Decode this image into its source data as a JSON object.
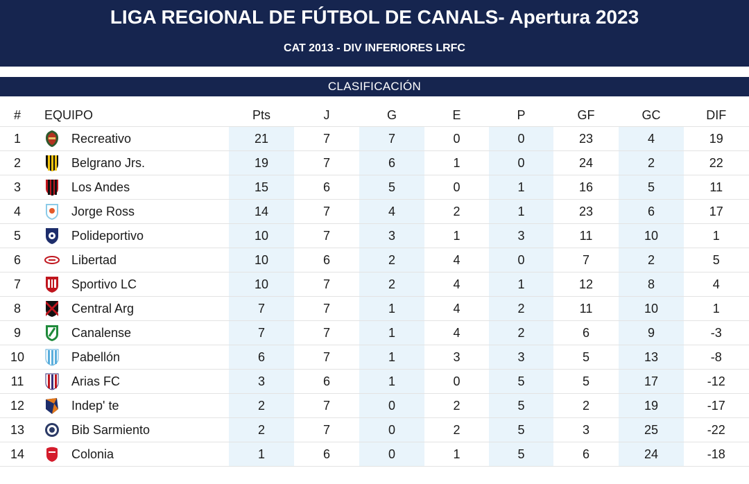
{
  "header": {
    "title": "LIGA REGIONAL DE FÚTBOL DE CANALS- Apertura 2023",
    "subtitle": "CAT 2013 - DIV INFERIORES LRFC"
  },
  "section_label": "CLASIFICACIÓN",
  "columns": [
    "#",
    "EQUIPO",
    "Pts",
    "J",
    "G",
    "E",
    "P",
    "GF",
    "GC",
    "DIF"
  ],
  "rows": [
    {
      "rank": "1",
      "team": "Recreativo",
      "crest": "recreativo-crest-icon",
      "pts": "21",
      "j": "7",
      "g": "7",
      "e": "0",
      "p": "0",
      "gf": "23",
      "gc": "4",
      "dif": "19"
    },
    {
      "rank": "2",
      "team": "Belgrano Jrs.",
      "crest": "belgrano-jrs-crest-icon",
      "pts": "19",
      "j": "7",
      "g": "6",
      "e": "1",
      "p": "0",
      "gf": "24",
      "gc": "2",
      "dif": "22"
    },
    {
      "rank": "3",
      "team": "Los Andes",
      "crest": "los-andes-crest-icon",
      "pts": "15",
      "j": "6",
      "g": "5",
      "e": "0",
      "p": "1",
      "gf": "16",
      "gc": "5",
      "dif": "11"
    },
    {
      "rank": "4",
      "team": "Jorge Ross",
      "crest": "jorge-ross-crest-icon",
      "pts": "14",
      "j": "7",
      "g": "4",
      "e": "2",
      "p": "1",
      "gf": "23",
      "gc": "6",
      "dif": "17"
    },
    {
      "rank": "5",
      "team": "Polideportivo",
      "crest": "polideportivo-crest-icon",
      "pts": "10",
      "j": "7",
      "g": "3",
      "e": "1",
      "p": "3",
      "gf": "11",
      "gc": "10",
      "dif": "1"
    },
    {
      "rank": "6",
      "team": "Libertad",
      "crest": "libertad-crest-icon",
      "pts": "10",
      "j": "6",
      "g": "2",
      "e": "4",
      "p": "0",
      "gf": "7",
      "gc": "2",
      "dif": "5"
    },
    {
      "rank": "7",
      "team": "Sportivo LC",
      "crest": "sportivo-lc-crest-icon",
      "pts": "10",
      "j": "7",
      "g": "2",
      "e": "4",
      "p": "1",
      "gf": "12",
      "gc": "8",
      "dif": "4"
    },
    {
      "rank": "8",
      "team": "Central Arg",
      "crest": "central-arg-crest-icon",
      "pts": "7",
      "j": "7",
      "g": "1",
      "e": "4",
      "p": "2",
      "gf": "11",
      "gc": "10",
      "dif": "1"
    },
    {
      "rank": "9",
      "team": "Canalense",
      "crest": "canalense-crest-icon",
      "pts": "7",
      "j": "7",
      "g": "1",
      "e": "4",
      "p": "2",
      "gf": "6",
      "gc": "9",
      "dif": "-3"
    },
    {
      "rank": "10",
      "team": "Pabellón",
      "crest": "pabellon-crest-icon",
      "pts": "6",
      "j": "7",
      "g": "1",
      "e": "3",
      "p": "3",
      "gf": "5",
      "gc": "13",
      "dif": "-8"
    },
    {
      "rank": "11",
      "team": "Arias FC",
      "crest": "arias-fc-crest-icon",
      "pts": "3",
      "j": "6",
      "g": "1",
      "e": "0",
      "p": "5",
      "gf": "5",
      "gc": "17",
      "dif": "-12"
    },
    {
      "rank": "12",
      "team": "Indep' te",
      "crest": "independiente-crest-icon",
      "pts": "2",
      "j": "7",
      "g": "0",
      "e": "2",
      "p": "5",
      "gf": "2",
      "gc": "19",
      "dif": "-17"
    },
    {
      "rank": "13",
      "team": "Bib Sarmiento",
      "crest": "bib-sarmiento-crest-icon",
      "pts": "2",
      "j": "7",
      "g": "0",
      "e": "2",
      "p": "5",
      "gf": "3",
      "gc": "25",
      "dif": "-22"
    },
    {
      "rank": "14",
      "team": "Colonia",
      "crest": "colonia-crest-icon",
      "pts": "1",
      "j": "6",
      "g": "0",
      "e": "1",
      "p": "5",
      "gf": "6",
      "gc": "24",
      "dif": "-18"
    }
  ],
  "colors": {
    "header_bg": "#16254f",
    "shaded_column_bg": "#e9f4fb",
    "text": "#1a1a1a"
  }
}
